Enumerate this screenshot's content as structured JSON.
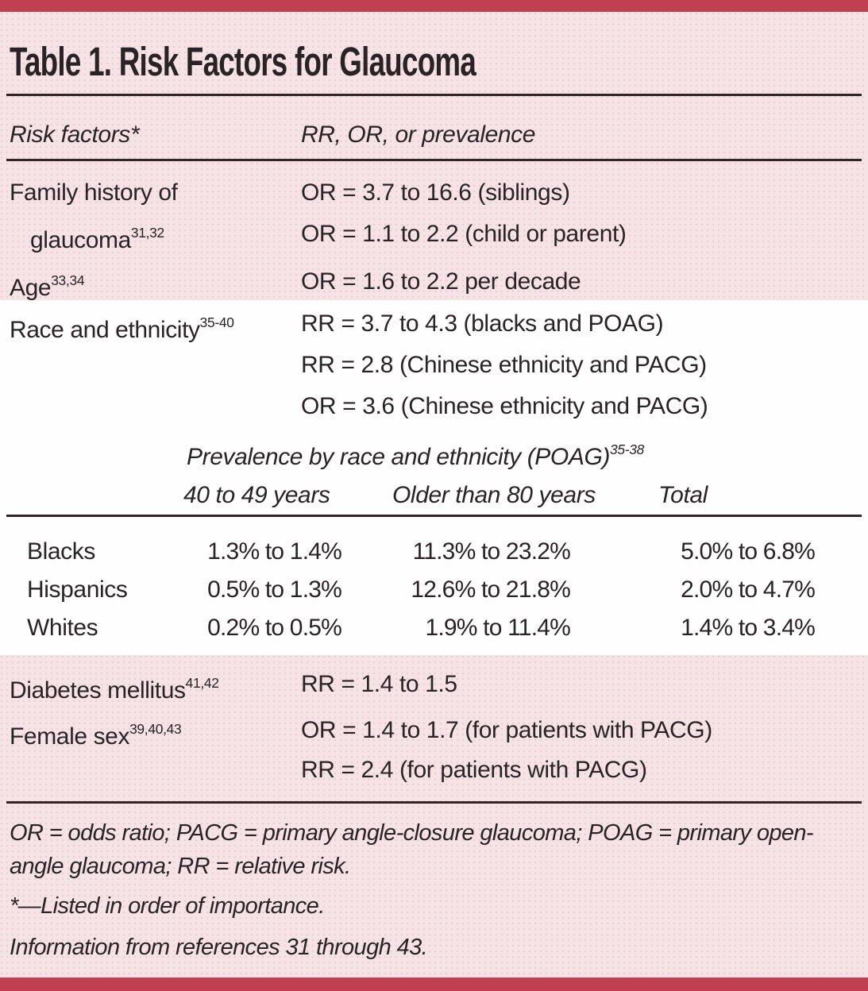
{
  "title": "Table 1. Risk Factors for Glaucoma",
  "columns": {
    "risk": "Risk factors*",
    "value": "RR, OR, or prevalence"
  },
  "risk_rows": [
    {
      "label": "Family history of",
      "label2": "glaucoma",
      "sup2": "31,32",
      "values": [
        "OR = 3.7 to 16.6 (siblings)",
        "OR = 1.1 to 2.2 (child or parent)"
      ]
    },
    {
      "label": "Age",
      "sup": "33,34",
      "values": [
        "OR = 1.6 to 2.2 per decade"
      ]
    },
    {
      "label": "Race and ethnicity",
      "sup": "35-40",
      "values": [
        "RR = 3.7 to 4.3 (blacks and POAG)",
        "RR = 2.8 (Chinese ethnicity and PACG)",
        "OR = 3.6 (Chinese ethnicity and PACG)"
      ]
    },
    {
      "label": "Diabetes mellitus",
      "sup": "41,42",
      "values": [
        "RR = 1.4 to 1.5"
      ]
    },
    {
      "label": "Female sex",
      "sup": "39,40,43",
      "values": [
        "OR = 1.4 to 1.7 (for patients with PACG)",
        "RR = 2.4 (for patients with PACG)"
      ]
    }
  ],
  "prevalence": {
    "title": "Prevalence by race and ethnicity (POAG)",
    "title_sup": "35-38",
    "col_headers": [
      "40 to 49 years",
      "Older than 80 years",
      "Total"
    ],
    "rows": [
      {
        "label": "Blacks",
        "c1": "1.3% to 1.4%",
        "c2": "11.3% to 23.2%",
        "c3": "5.0% to 6.8%"
      },
      {
        "label": "Hispanics",
        "c1": "0.5% to 1.3%",
        "c2": "12.6% to 21.8%",
        "c3": "2.0% to 4.7%"
      },
      {
        "label": "Whites",
        "c1": "0.2% to 0.5%",
        "c2": "1.9% to 11.4%",
        "c3": "1.4% to 3.4%"
      }
    ]
  },
  "footnotes": {
    "abbreviations_line1": "OR = odds ratio; PACG = primary angle-closure glaucoma; POAG = primary open-",
    "abbreviations_line2": "angle glaucoma; RR = relative risk.",
    "asterisk": "*—Listed in order of importance.",
    "source": "Information from references 31 through 43."
  },
  "colors": {
    "accent_bar": "#c04052",
    "band_pink": "#f6e3e6",
    "band_white": "#fffefe",
    "text": "#2a2326",
    "rule": "#342428"
  }
}
